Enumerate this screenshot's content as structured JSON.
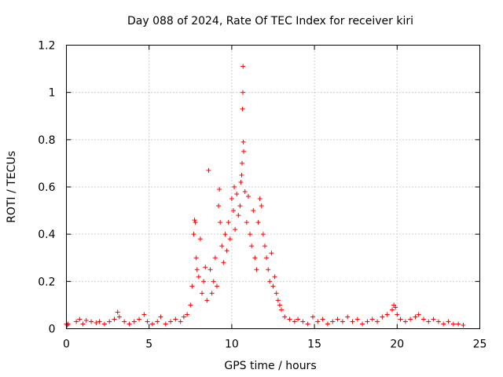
{
  "chart_data": {
    "type": "scatter",
    "title": "Day 088 of 2024, Rate Of TEC Index for receiver kiri",
    "xlabel": "GPS time / hours",
    "ylabel": "ROTI / TECUs",
    "xlim": [
      0,
      25
    ],
    "ylim": [
      0,
      1.2
    ],
    "xticks": [
      0,
      5,
      10,
      15,
      20,
      25
    ],
    "xtick_labels": [
      "0",
      "5",
      "10",
      "15",
      "20",
      "25"
    ],
    "yticks": [
      0,
      0.2,
      0.4,
      0.6,
      0.8,
      1.0,
      1.2
    ],
    "ytick_labels": [
      "0",
      "0.2",
      "0.4",
      "0.6",
      "0.8",
      "1",
      "1.2"
    ],
    "grid": true,
    "marker": "plus",
    "series": [
      {
        "name": "ROTI",
        "color": "#ff0000",
        "points": [
          [
            0.0,
            0.02
          ],
          [
            0.05,
            0.015
          ],
          [
            0.1,
            0.02
          ],
          [
            0.6,
            0.03
          ],
          [
            0.8,
            0.04
          ],
          [
            1.0,
            0.02
          ],
          [
            1.2,
            0.035
          ],
          [
            1.5,
            0.03
          ],
          [
            1.8,
            0.025
          ],
          [
            2.0,
            0.03
          ],
          [
            2.3,
            0.02
          ],
          [
            2.6,
            0.03
          ],
          [
            2.9,
            0.04
          ],
          [
            3.1,
            0.07
          ],
          [
            3.2,
            0.05
          ],
          [
            3.5,
            0.03
          ],
          [
            3.8,
            0.02
          ],
          [
            4.1,
            0.03
          ],
          [
            4.4,
            0.04
          ],
          [
            4.7,
            0.06
          ],
          [
            4.9,
            0.03
          ],
          [
            5.2,
            0.02
          ],
          [
            5.5,
            0.03
          ],
          [
            5.7,
            0.05
          ],
          [
            6.0,
            0.02
          ],
          [
            6.3,
            0.03
          ],
          [
            6.6,
            0.04
          ],
          [
            6.9,
            0.03
          ],
          [
            7.1,
            0.05
          ],
          [
            7.3,
            0.06
          ],
          [
            7.5,
            0.1
          ],
          [
            7.6,
            0.18
          ],
          [
            7.7,
            0.4
          ],
          [
            7.75,
            0.46
          ],
          [
            7.8,
            0.45
          ],
          [
            7.85,
            0.3
          ],
          [
            7.9,
            0.25
          ],
          [
            8.0,
            0.22
          ],
          [
            8.1,
            0.38
          ],
          [
            8.2,
            0.15
          ],
          [
            8.3,
            0.2
          ],
          [
            8.4,
            0.26
          ],
          [
            8.5,
            0.12
          ],
          [
            8.6,
            0.67
          ],
          [
            8.7,
            0.25
          ],
          [
            8.8,
            0.15
          ],
          [
            8.9,
            0.2
          ],
          [
            9.0,
            0.3
          ],
          [
            9.1,
            0.18
          ],
          [
            9.2,
            0.52
          ],
          [
            9.25,
            0.59
          ],
          [
            9.3,
            0.45
          ],
          [
            9.4,
            0.35
          ],
          [
            9.5,
            0.28
          ],
          [
            9.6,
            0.4
          ],
          [
            9.7,
            0.33
          ],
          [
            9.8,
            0.45
          ],
          [
            9.9,
            0.38
          ],
          [
            10.0,
            0.55
          ],
          [
            10.1,
            0.5
          ],
          [
            10.15,
            0.6
          ],
          [
            10.2,
            0.42
          ],
          [
            10.3,
            0.57
          ],
          [
            10.4,
            0.48
          ],
          [
            10.5,
            0.52
          ],
          [
            10.55,
            0.62
          ],
          [
            10.6,
            0.65
          ],
          [
            10.62,
            0.7
          ],
          [
            10.65,
            0.93
          ],
          [
            10.67,
            1.0
          ],
          [
            10.68,
            1.11
          ],
          [
            10.7,
            0.79
          ],
          [
            10.72,
            0.75
          ],
          [
            10.8,
            0.58
          ],
          [
            10.9,
            0.45
          ],
          [
            11.0,
            0.56
          ],
          [
            11.1,
            0.4
          ],
          [
            11.2,
            0.35
          ],
          [
            11.3,
            0.5
          ],
          [
            11.4,
            0.3
          ],
          [
            11.5,
            0.25
          ],
          [
            11.6,
            0.45
          ],
          [
            11.7,
            0.55
          ],
          [
            11.8,
            0.52
          ],
          [
            11.9,
            0.4
          ],
          [
            12.0,
            0.35
          ],
          [
            12.1,
            0.3
          ],
          [
            12.2,
            0.25
          ],
          [
            12.3,
            0.2
          ],
          [
            12.4,
            0.32
          ],
          [
            12.5,
            0.18
          ],
          [
            12.6,
            0.22
          ],
          [
            12.7,
            0.15
          ],
          [
            12.8,
            0.12
          ],
          [
            12.9,
            0.1
          ],
          [
            13.0,
            0.08
          ],
          [
            13.2,
            0.05
          ],
          [
            13.5,
            0.04
          ],
          [
            13.8,
            0.03
          ],
          [
            14.0,
            0.04
          ],
          [
            14.3,
            0.03
          ],
          [
            14.6,
            0.02
          ],
          [
            14.9,
            0.05
          ],
          [
            15.2,
            0.03
          ],
          [
            15.5,
            0.04
          ],
          [
            15.8,
            0.02
          ],
          [
            16.1,
            0.03
          ],
          [
            16.4,
            0.04
          ],
          [
            16.7,
            0.03
          ],
          [
            17.0,
            0.05
          ],
          [
            17.3,
            0.03
          ],
          [
            17.6,
            0.04
          ],
          [
            17.9,
            0.02
          ],
          [
            18.2,
            0.03
          ],
          [
            18.5,
            0.04
          ],
          [
            18.8,
            0.03
          ],
          [
            19.1,
            0.05
          ],
          [
            19.4,
            0.06
          ],
          [
            19.7,
            0.08
          ],
          [
            19.8,
            0.1
          ],
          [
            19.9,
            0.09
          ],
          [
            20.0,
            0.06
          ],
          [
            20.2,
            0.04
          ],
          [
            20.5,
            0.03
          ],
          [
            20.8,
            0.04
          ],
          [
            21.1,
            0.05
          ],
          [
            21.3,
            0.06
          ],
          [
            21.6,
            0.04
          ],
          [
            21.9,
            0.03
          ],
          [
            22.2,
            0.04
          ],
          [
            22.5,
            0.03
          ],
          [
            22.8,
            0.02
          ],
          [
            23.1,
            0.03
          ],
          [
            23.4,
            0.02
          ],
          [
            23.7,
            0.02
          ],
          [
            24.0,
            0.015
          ]
        ]
      }
    ]
  }
}
